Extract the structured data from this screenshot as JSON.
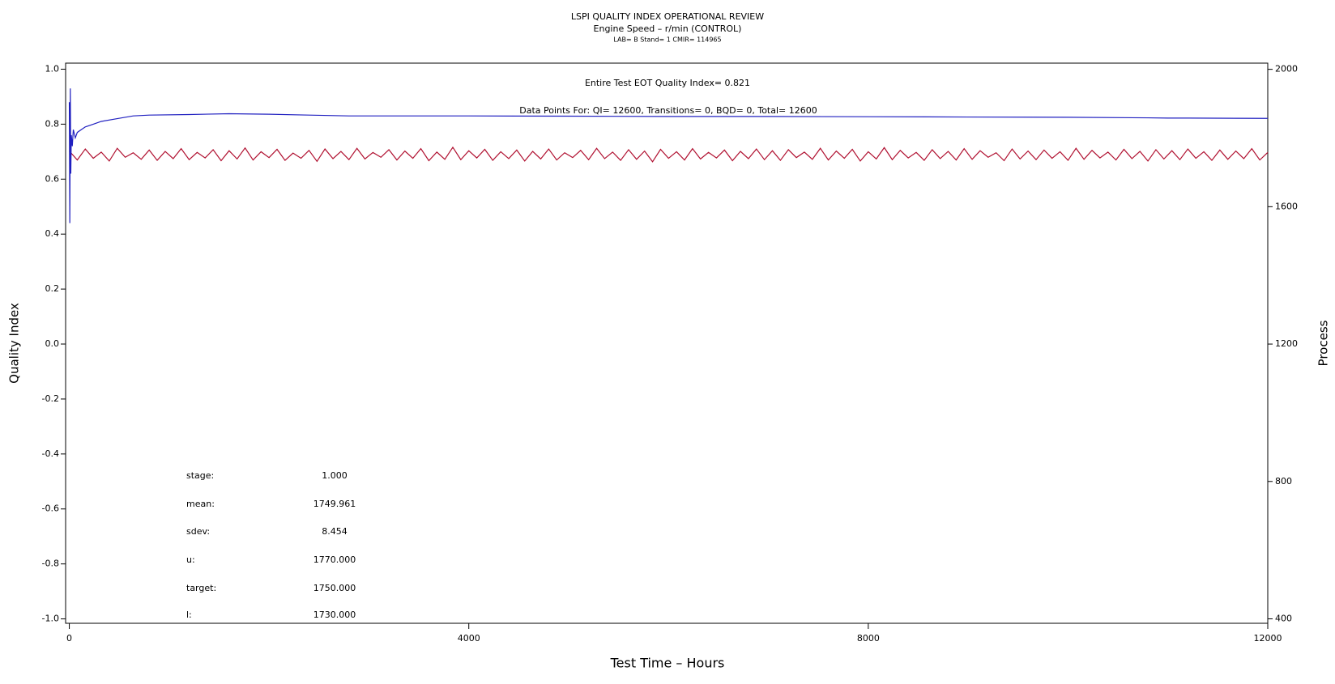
{
  "chart_data": {
    "type": "line",
    "title": "LSPI QUALITY INDEX OPERATIONAL REVIEW",
    "subtitle": "Engine Speed – r/min (CONTROL)",
    "subtitle2": "LAB= B Stand= 1 CMIR= 114965",
    "xlabel": "Test Time – Hours",
    "ylabel": "Quality Index",
    "y2label": "Process",
    "annotations": [
      "Entire Test EOT Quality Index=   0.821",
      "Data Points For: QI= 12600, Transitions=     0, BQD=     0, Total= 12600"
    ],
    "stats": [
      {
        "label": "stage:",
        "value": "1.000"
      },
      {
        "label": "mean:",
        "value": "1749.961"
      },
      {
        "label": "sdev:",
        "value": "8.454"
      },
      {
        "label": "u:",
        "value": "1770.000"
      },
      {
        "label": "target:",
        "value": "1750.000"
      },
      {
        "label": "l:",
        "value": "1730.000"
      }
    ],
    "xlim": [
      -37,
      12000
    ],
    "xticks": [
      0,
      4000,
      8000,
      12000
    ],
    "ylim": [
      -1.016,
      1.022
    ],
    "yticks": [
      {
        "value": -1.0,
        "label": "-1.0"
      },
      {
        "value": -0.8,
        "label": "-0.8"
      },
      {
        "value": -0.6,
        "label": "-0.6"
      },
      {
        "value": -0.4,
        "label": "-0.4"
      },
      {
        "value": -0.2,
        "label": "-0.2"
      },
      {
        "value": 0.0,
        "label": "0.0"
      },
      {
        "value": 0.2,
        "label": "0.2"
      },
      {
        "value": 0.4,
        "label": "0.4"
      },
      {
        "value": 0.6,
        "label": "0.6"
      },
      {
        "value": 0.8,
        "label": "0.8"
      },
      {
        "value": 1.0,
        "label": "1.0"
      }
    ],
    "y2lim": [
      387,
      2018
    ],
    "y2ticks": [
      400,
      800,
      1200,
      1600,
      2000
    ],
    "series": [
      {
        "color": "#b01030",
        "axis": "y2",
        "x": [
          0,
          80,
          160,
          240,
          320,
          400,
          480,
          560,
          640,
          720,
          800,
          880,
          960,
          1040,
          1120,
          1200,
          1280,
          1360,
          1440,
          1520,
          1600,
          1680,
          1760,
          1840,
          1920,
          2000,
          2080,
          2160,
          2240,
          2320,
          2400,
          2480,
          2560,
          2640,
          2720,
          2800,
          2880,
          2960,
          3040,
          3120,
          3200,
          3280,
          3360,
          3440,
          3520,
          3600,
          3680,
          3760,
          3840,
          3920,
          4000,
          4080,
          4160,
          4240,
          4320,
          4400,
          4480,
          4560,
          4640,
          4720,
          4800,
          4880,
          4960,
          5040,
          5120,
          5200,
          5280,
          5360,
          5440,
          5520,
          5600,
          5680,
          5760,
          5840,
          5920,
          6000,
          6080,
          6160,
          6240,
          6320,
          6400,
          6480,
          6560,
          6640,
          6720,
          6800,
          6880,
          6960,
          7040,
          7120,
          7200,
          7280,
          7360,
          7440,
          7520,
          7600,
          7680,
          7760,
          7840,
          7920,
          8000,
          8080,
          8160,
          8240,
          8320,
          8400,
          8480,
          8560,
          8640,
          8720,
          8800,
          8880,
          8960,
          9040,
          9120,
          9200,
          9280,
          9360,
          9440,
          9520,
          9600,
          9680,
          9760,
          9840,
          9920,
          10000,
          10080,
          10160,
          10240,
          10320,
          10400,
          10480,
          10560,
          10640,
          10720,
          10800,
          10880,
          10960,
          11040,
          11120,
          11200,
          11280,
          11360,
          11440,
          11520,
          11600,
          11680,
          11760,
          11840,
          11920,
          12000
        ],
        "values": [
          1762,
          1736,
          1768,
          1741,
          1759,
          1733,
          1770,
          1744,
          1757,
          1738,
          1765,
          1735,
          1761,
          1740,
          1769,
          1737,
          1758,
          1742,
          1766,
          1734,
          1763,
          1739,
          1771,
          1736,
          1760,
          1743,
          1767,
          1735,
          1756,
          1741,
          1764,
          1732,
          1768,
          1740,
          1761,
          1737,
          1770,
          1739,
          1758,
          1744,
          1766,
          1736,
          1762,
          1741,
          1769,
          1734,
          1759,
          1738,
          1773,
          1737,
          1763,
          1742,
          1767,
          1735,
          1760,
          1740,
          1765,
          1733,
          1761,
          1739,
          1768,
          1736,
          1757,
          1743,
          1764,
          1737,
          1770,
          1740,
          1759,
          1735,
          1766,
          1738,
          1762,
          1731,
          1767,
          1741,
          1760,
          1736,
          1769,
          1739,
          1758,
          1742,
          1765,
          1734,
          1761,
          1740,
          1768,
          1737,
          1763,
          1735,
          1766,
          1743,
          1759,
          1738,
          1770,
          1736,
          1762,
          1741,
          1767,
          1733,
          1760,
          1739,
          1772,
          1737,
          1764,
          1742,
          1758,
          1735,
          1766,
          1740,
          1761,
          1736,
          1769,
          1738,
          1763,
          1744,
          1757,
          1734,
          1768,
          1739,
          1762,
          1737,
          1765,
          1741,
          1760,
          1735,
          1770,
          1738,
          1764,
          1742,
          1759,
          1736,
          1767,
          1740,
          1761,
          1733,
          1766,
          1739,
          1763,
          1737,
          1768,
          1741,
          1760,
          1735,
          1765,
          1738,
          1762,
          1740,
          1769,
          1736,
          1758
        ]
      },
      {
        "color": "#2020c0",
        "axis": "y",
        "x": [
          0,
          5,
          10,
          15,
          20,
          30,
          40,
          60,
          80,
          120,
          160,
          240,
          320,
          480,
          640,
          800,
          1200,
          1600,
          2000,
          2400,
          2800,
          3200,
          4000,
          5000,
          6000,
          7000,
          8000,
          9000,
          10000,
          10800,
          11000,
          11200,
          12000
        ],
        "values": [
          0.88,
          0.44,
          0.93,
          0.62,
          0.76,
          0.72,
          0.78,
          0.75,
          0.77,
          0.78,
          0.79,
          0.8,
          0.81,
          0.82,
          0.83,
          0.833,
          0.835,
          0.838,
          0.836,
          0.833,
          0.83,
          0.83,
          0.83,
          0.829,
          0.828,
          0.828,
          0.827,
          0.826,
          0.825,
          0.823,
          0.822,
          0.822,
          0.821
        ]
      }
    ]
  }
}
